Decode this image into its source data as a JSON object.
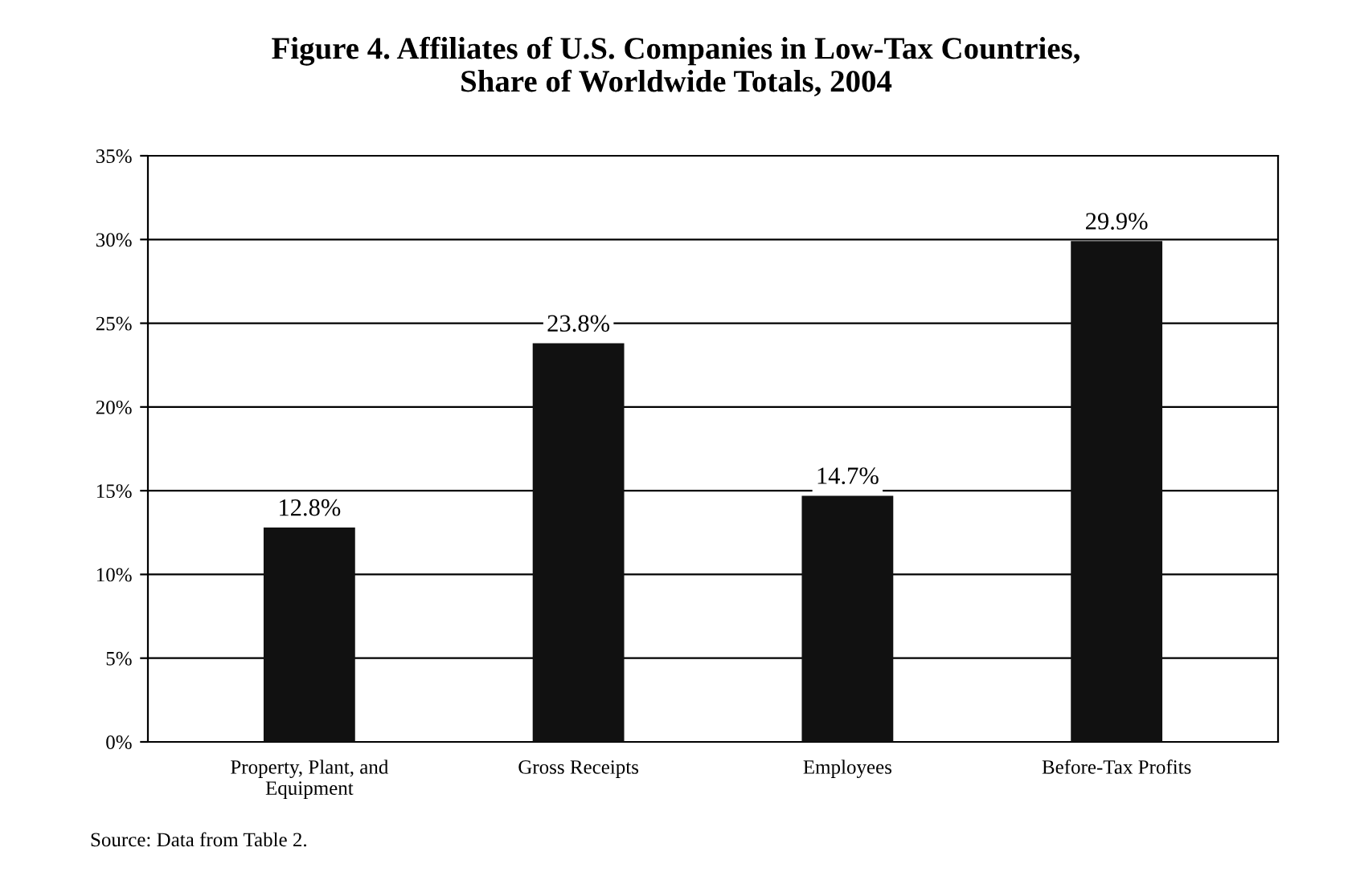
{
  "chart_data": {
    "type": "bar",
    "title": "Figure 4. Affiliates of U.S. Companies in Low-Tax Countries,\nShare of Worldwide Totals, 2004",
    "categories": [
      "Property, Plant, and\nEquipment",
      "Gross Receipts",
      "Employees",
      "Before-Tax Profits"
    ],
    "values": [
      12.8,
      23.8,
      14.7,
      29.9
    ],
    "value_labels": [
      "12.8%",
      "23.8%",
      "14.7%",
      "29.9%"
    ],
    "color": "#111111",
    "ylim": [
      0,
      35
    ],
    "yticks": [
      {
        "value": 0,
        "label": "0%"
      },
      {
        "value": 5,
        "label": "5%"
      },
      {
        "value": 10,
        "label": "10%"
      },
      {
        "value": 15,
        "label": "15%"
      },
      {
        "value": 20,
        "label": "20%"
      },
      {
        "value": 25,
        "label": "25%"
      },
      {
        "value": 30,
        "label": "30%"
      },
      {
        "value": 35,
        "label": "35%"
      }
    ],
    "grid": "y",
    "annotations": [
      "Source: Data from Table 2."
    ]
  }
}
